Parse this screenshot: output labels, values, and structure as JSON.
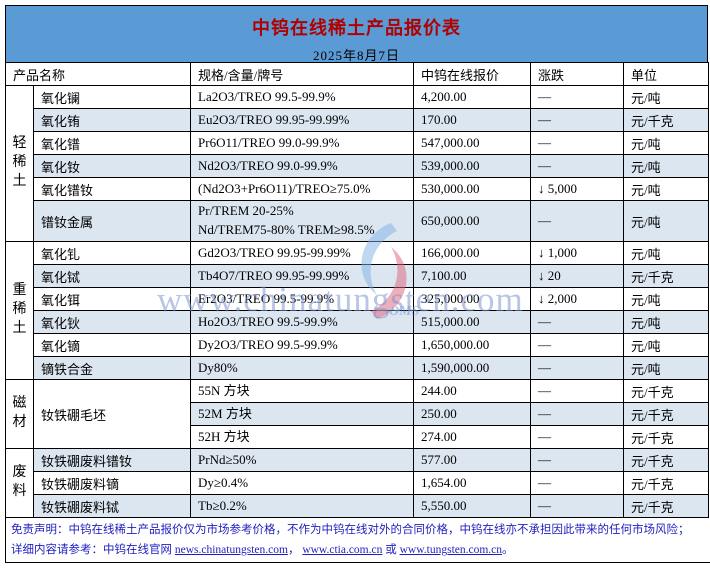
{
  "banner": {
    "title": "中钨在线稀土产品报价表",
    "date": "2025年8月7日",
    "background_color": "#5b9bd5",
    "title_color": "#b00000"
  },
  "columns": {
    "product": "产品名称",
    "spec": "规格/含量/牌号",
    "price": "中钨在线报价",
    "change": "涨跌",
    "unit": "单位"
  },
  "groups": [
    {
      "label": "轻稀土",
      "rows": [
        {
          "product": "氧化镧",
          "spec": "La2O3/TREO 99.5-99.9%",
          "price": "4,200.00",
          "change": "—",
          "unit": "元/吨"
        },
        {
          "product": "氧化铕",
          "spec": "Eu2O3/TREO 99.95-99.99%",
          "price": "170.00",
          "change": "—",
          "unit": "元/千克"
        },
        {
          "product": "氧化镨",
          "spec": "Pr6O11/TREO 99.0-99.9%",
          "price": "547,000.00",
          "change": "—",
          "unit": "元/吨"
        },
        {
          "product": "氧化钕",
          "spec": "Nd2O3/TREO 99.0-99.9%",
          "price": "539,000.00",
          "change": "—",
          "unit": "元/吨"
        },
        {
          "product": "氧化镨钕",
          "spec": "(Nd2O3+Pr6O11)/TREO≥75.0%",
          "price": "530,000.00",
          "change": "↓ 5,000",
          "unit": "元/吨"
        },
        {
          "product": "镨钕金属",
          "spec": "Pr/TREM 20-25%\nNd/TREM75-80% TREM≥98.5%",
          "price": "650,000.00",
          "change": "—",
          "unit": "元/吨",
          "tall": true
        }
      ]
    },
    {
      "label": "重稀土",
      "rows": [
        {
          "product": "氧化钆",
          "spec": "Gd2O3/TREO 99.95-99.99%",
          "price": "166,000.00",
          "change": "↓ 1,000",
          "unit": "元/吨"
        },
        {
          "product": "氧化铽",
          "spec": "Tb4O7/TREO 99.95-99.99%",
          "price": "7,100.00",
          "change": "↓ 20",
          "unit": "元/千克"
        },
        {
          "product": "氧化铒",
          "spec": "Er2O3/TREO 99.5-99.9%",
          "price": "325,000.00",
          "change": "↓ 2,000",
          "unit": "元/吨"
        },
        {
          "product": "氧化钬",
          "spec": "Ho2O3/TREO 99.5-99.9%",
          "price": "515,000.00",
          "change": "—",
          "unit": "元/吨"
        },
        {
          "product": "氧化镝",
          "spec": "Dy2O3/TREO 99.5-99.9%",
          "price": "1,650,000.00",
          "change": "—",
          "unit": "元/吨"
        },
        {
          "product": "镝铁合金",
          "spec": "Dy80%",
          "price": "1,590,000.00",
          "change": "—",
          "unit": "元/吨"
        }
      ]
    },
    {
      "label": "磁材",
      "rows": [
        {
          "product": "钕铁硼毛坯",
          "product_rowspan": 3,
          "spec": "55N 方块",
          "price": "244.00",
          "change": "—",
          "unit": "元/千克"
        },
        {
          "spec": "52M 方块",
          "price": "250.00",
          "change": "—",
          "unit": "元/千克"
        },
        {
          "spec": "52H 方块",
          "price": "274.00",
          "change": "—",
          "unit": "元/千克"
        }
      ]
    },
    {
      "label": "废料",
      "rows": [
        {
          "product": "钕铁硼废料镨钕",
          "spec": "PrNd≥50%",
          "price": "577.00",
          "change": "—",
          "unit": "元/千克"
        },
        {
          "product": "钕铁硼废料镝",
          "spec": "Dy≥0.4%",
          "price": "1,654.00",
          "change": "—",
          "unit": "元/千克"
        },
        {
          "product": "钕铁硼废料铽",
          "spec": "Tb≥0.2%",
          "price": "5,550.00",
          "change": "—",
          "unit": "元/千克"
        }
      ]
    }
  ],
  "watermark": {
    "text": "www.chinatungsten.com",
    "logo_caption": "OMS"
  },
  "footer": {
    "line1": "免责声明：中钨在线稀土产品报价仅为市场参考价格，不作为中钨在线对外的合同价格，中钨在线亦不承担因此带来的任何市场风险；",
    "line2_prefix": "详细内容请参考：中钨在线官网 ",
    "link1": "news.chinatungsten.com",
    "sep1": "， ",
    "link2": "www.ctia.com.cn",
    "sep2": " 或 ",
    "link3": "www.tungsten.com.cn",
    "suffix": "。"
  },
  "colors": {
    "stripe": "#dce6f1",
    "footer_text": "#1f1fbf",
    "watermark": "#7d96cd"
  }
}
